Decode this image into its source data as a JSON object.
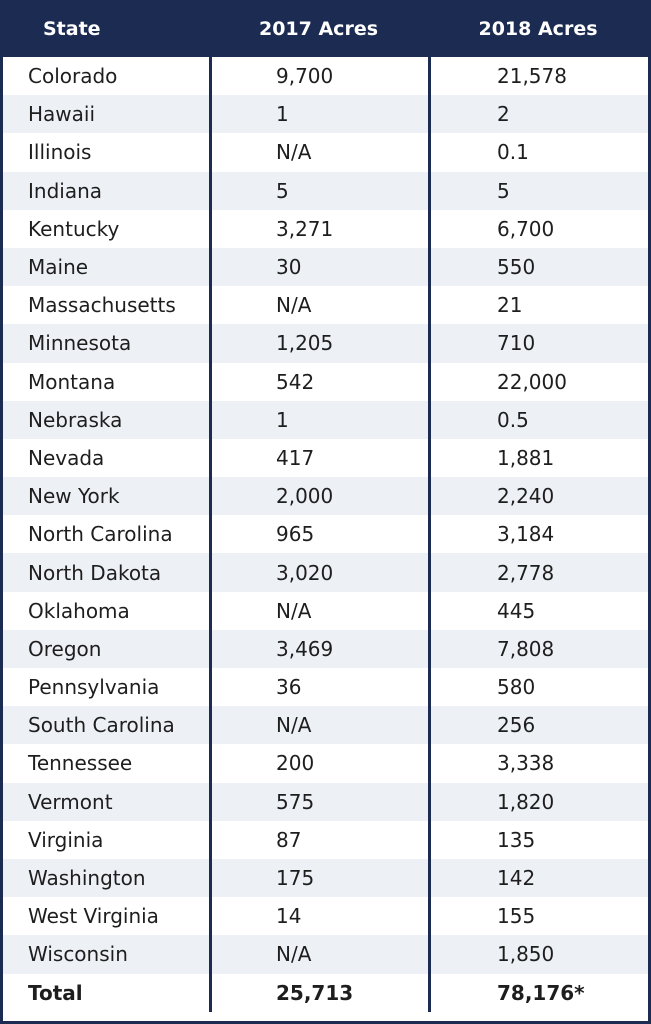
{
  "chart_data": {
    "type": "table",
    "columns": [
      "State",
      "2017 Acres",
      "2018  Acres"
    ],
    "rows": [
      [
        "Colorado",
        "9,700",
        "21,578"
      ],
      [
        "Hawaii",
        "1",
        "2"
      ],
      [
        "Illinois",
        "N/A",
        "0.1"
      ],
      [
        "Indiana",
        "5",
        "5"
      ],
      [
        "Kentucky",
        "3,271",
        "6,700"
      ],
      [
        "Maine",
        "30",
        "550"
      ],
      [
        "Massachusetts",
        "N/A",
        "21"
      ],
      [
        "Minnesota",
        "1,205",
        "710"
      ],
      [
        "Montana",
        "542",
        "22,000"
      ],
      [
        "Nebraska",
        "1",
        "0.5"
      ],
      [
        "Nevada",
        "417",
        "1,881"
      ],
      [
        "New York",
        "2,000",
        "2,240"
      ],
      [
        "North Carolina",
        "965",
        "3,184"
      ],
      [
        "North Dakota",
        "3,020",
        "2,778"
      ],
      [
        "Oklahoma",
        "N/A",
        "445"
      ],
      [
        "Oregon",
        "3,469",
        "7,808"
      ],
      [
        "Pennsylvania",
        "36",
        "580"
      ],
      [
        "South Carolina",
        "N/A",
        "256"
      ],
      [
        "Tennessee",
        "200",
        "3,338"
      ],
      [
        "Vermont",
        "575",
        "1,820"
      ],
      [
        "Virginia",
        "87",
        "135"
      ],
      [
        "Washington",
        "175",
        "142"
      ],
      [
        "West Virginia",
        "14",
        "155"
      ],
      [
        "Wisconsin",
        "N/A",
        "1,850"
      ]
    ],
    "total_row": [
      "Total",
      "25,713",
      "78,176*"
    ]
  },
  "colors": {
    "header_bg": "#1c2b52",
    "alt_row_bg": "#edf0f5",
    "text": "#1e1e1e"
  }
}
